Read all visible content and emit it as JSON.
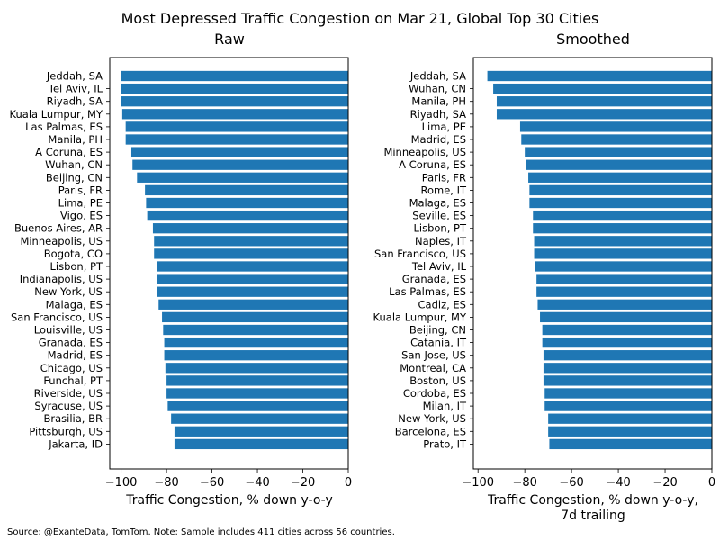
{
  "chart_data": {
    "title": "Most Depressed Traffic Congestion on Mar 21, Global Top 30 Cities",
    "footnote": "Source: @ExanteData, TomTom.   Note: Sample includes 411 cities across 56 countries.",
    "bar_color": "#1f77b4",
    "panels": [
      {
        "type": "bar",
        "orientation": "horizontal",
        "subtitle": "Raw",
        "xlabel": "Traffic Congestion, % down y-o-y",
        "xlabel_line2": "",
        "xlim": [
          -105,
          0
        ],
        "xticks": [
          -100,
          -80,
          -60,
          -40,
          -20,
          0
        ],
        "xtick_labels": [
          "−100",
          "−80",
          "−60",
          "−40",
          "−20",
          "0"
        ],
        "categories": [
          "Jeddah, SA",
          "Tel Aviv, IL",
          "Riyadh, SA",
          "Kuala Lumpur, MY",
          "Las Palmas, ES",
          "Manila, PH",
          "A Coruna, ES",
          "Wuhan, CN",
          "Beijing, CN",
          "Paris, FR",
          "Lima, PE",
          "Vigo, ES",
          "Buenos Aires, AR",
          "Minneapolis, US",
          "Bogota, CO",
          "Lisbon, PT",
          "Indianapolis, US",
          "New York, US",
          "Malaga, ES",
          "San Francisco, US",
          "Louisville, US",
          "Granada, ES",
          "Madrid, ES",
          "Chicago, US",
          "Funchal, PT",
          "Riverside, US",
          "Syracuse, US",
          "Brasilia, BR",
          "Pittsburgh, US",
          "Jakarta, ID"
        ],
        "values": [
          -100,
          -100,
          -100,
          -99.5,
          -98,
          -98,
          -95.5,
          -95,
          -93,
          -89.5,
          -89,
          -88.5,
          -86,
          -85.5,
          -85.5,
          -84,
          -84,
          -84,
          -83.5,
          -82,
          -81.5,
          -81,
          -81,
          -80.5,
          -80,
          -80,
          -79.5,
          -78,
          -76.5,
          -76.5
        ]
      },
      {
        "type": "bar",
        "orientation": "horizontal",
        "subtitle": "Smoothed",
        "xlabel": "Traffic Congestion, % down y-o-y,",
        "xlabel_line2": "7d trailing",
        "xlim": [
          -102,
          0
        ],
        "xticks": [
          -100,
          -80,
          -60,
          -40,
          -20,
          0
        ],
        "xtick_labels": [
          "−100",
          "−80",
          "−60",
          "−40",
          "−20",
          "0"
        ],
        "categories": [
          "Jeddah, SA",
          "Wuhan, CN",
          "Manila, PH",
          "Riyadh, SA",
          "Lima, PE",
          "Madrid, ES",
          "Minneapolis, US",
          "A Coruna, ES",
          "Paris, FR",
          "Rome, IT",
          "Malaga, ES",
          "Seville, ES",
          "Lisbon, PT",
          "Naples, IT",
          "San Francisco, US",
          "Tel Aviv, IL",
          "Granada, ES",
          "Las Palmas, ES",
          "Cadiz, ES",
          "Kuala Lumpur, MY",
          "Beijing, CN",
          "Catania, IT",
          "San Jose, US",
          "Montreal, CA",
          "Boston, US",
          "Cordoba, ES",
          "Milan, IT",
          "New York, US",
          "Barcelona, ES",
          "Prato, IT"
        ],
        "values": [
          -96,
          -93.5,
          -92,
          -92,
          -82,
          -81.5,
          -80,
          -79.5,
          -78.5,
          -78,
          -78,
          -76.5,
          -76.5,
          -76,
          -76,
          -75.5,
          -75,
          -75,
          -74.5,
          -73.5,
          -72.5,
          -72.5,
          -72,
          -72,
          -72,
          -71.5,
          -71.5,
          -70,
          -70,
          -69.5
        ]
      }
    ]
  }
}
